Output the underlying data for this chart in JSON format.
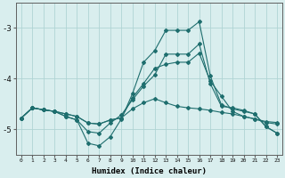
{
  "xlabel": "Humidex (Indice chaleur)",
  "background_color": "#d9eeee",
  "grid_color": "#b0d4d4",
  "line_color": "#1e6e6e",
  "x_values": [
    0,
    1,
    2,
    3,
    4,
    5,
    6,
    7,
    8,
    9,
    10,
    11,
    12,
    13,
    14,
    15,
    16,
    17,
    18,
    19,
    20,
    21,
    22,
    23
  ],
  "line1": [
    -4.78,
    -4.58,
    -4.62,
    -4.65,
    -4.7,
    -4.75,
    -4.88,
    -4.9,
    -4.82,
    -4.78,
    -4.6,
    -4.48,
    -4.4,
    -4.48,
    -4.55,
    -4.58,
    -4.6,
    -4.63,
    -4.67,
    -4.7,
    -4.75,
    -4.8,
    -4.85,
    -4.87
  ],
  "line2": [
    -4.78,
    -4.58,
    -4.62,
    -4.65,
    -4.7,
    -4.75,
    -4.88,
    -4.9,
    -4.82,
    -4.78,
    -4.38,
    -4.1,
    -3.8,
    -3.72,
    -3.68,
    -3.68,
    -3.5,
    -4.05,
    -4.35,
    -4.65,
    -4.75,
    -4.8,
    -4.87,
    -4.9
  ],
  "line3": [
    -4.78,
    -4.58,
    -4.62,
    -4.65,
    -4.75,
    -4.82,
    -5.05,
    -5.08,
    -4.88,
    -4.72,
    -4.42,
    -4.15,
    -3.93,
    -3.52,
    -3.52,
    -3.52,
    -3.32,
    -4.1,
    -4.55,
    -4.58,
    -4.63,
    -4.7,
    -4.95,
    -5.08
  ],
  "line4": [
    -4.78,
    -4.58,
    -4.62,
    -4.65,
    -4.75,
    -4.82,
    -5.28,
    -5.33,
    -5.15,
    -4.8,
    -4.3,
    -3.68,
    -3.45,
    -3.05,
    -3.05,
    -3.05,
    -2.88,
    -3.95,
    -4.52,
    -4.6,
    -4.65,
    -4.7,
    -4.95,
    -5.08
  ],
  "ylim": [
    -5.5,
    -2.5
  ],
  "yticks": [
    -5.0,
    -4.0,
    -3.0
  ],
  "ytick_labels": [
    "-5",
    "-4",
    "-3"
  ]
}
